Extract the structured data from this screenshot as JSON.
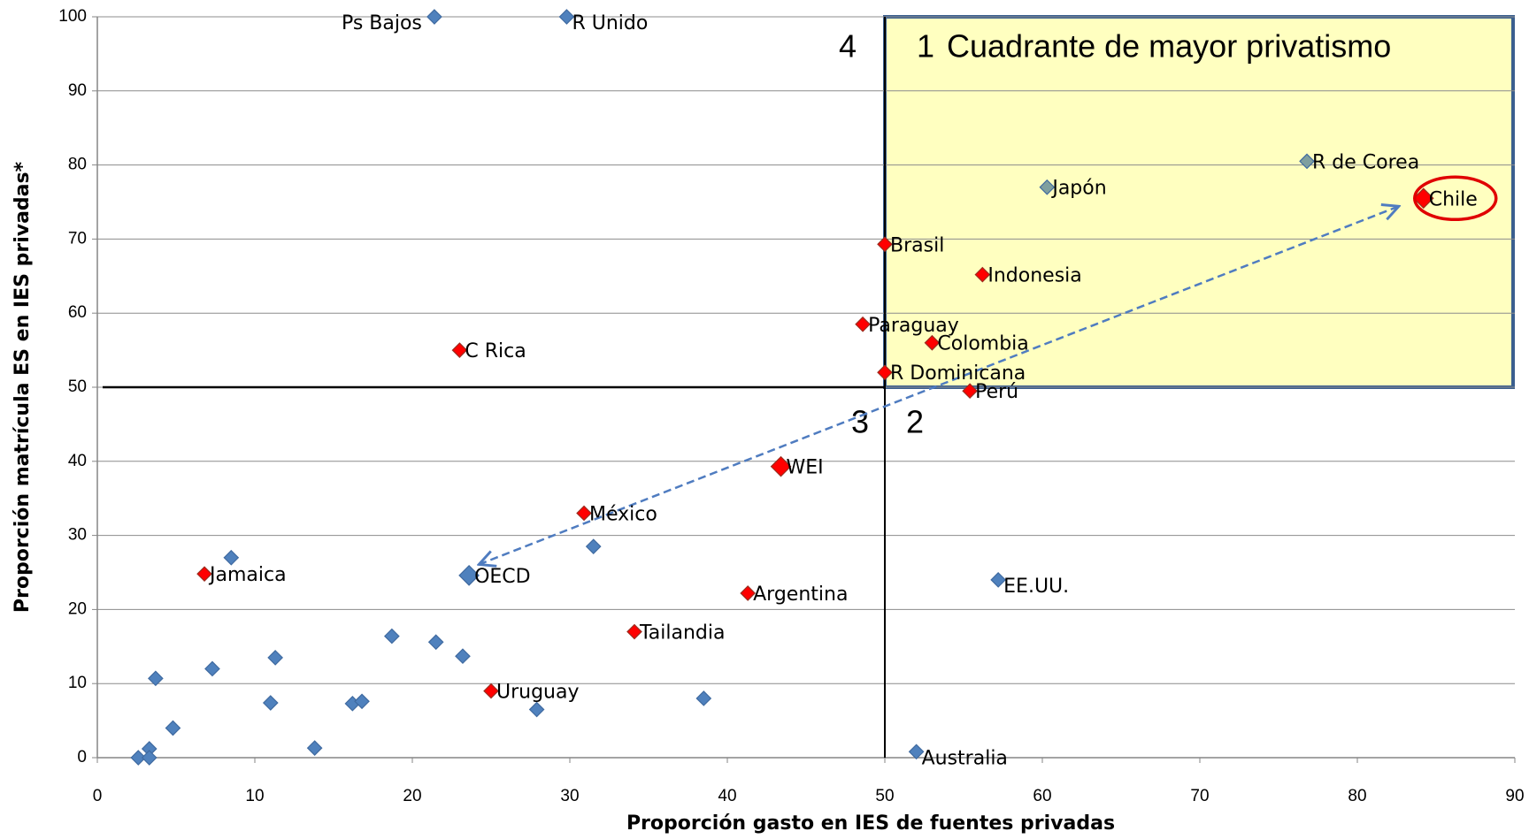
{
  "chart_data": {
    "type": "scatter",
    "xlabel": "Proporción gasto en IES de fuentes privadas",
    "ylabel": "Proporción matrícula ES en IES privadas*",
    "xlim": [
      0,
      90
    ],
    "xticks": [
      0,
      10,
      20,
      30,
      40,
      50,
      60,
      70,
      80,
      90
    ],
    "ylim": [
      0,
      100
    ],
    "yticks": [
      0,
      10,
      20,
      30,
      40,
      50,
      60,
      70,
      80,
      90,
      100
    ],
    "grid": true,
    "quadrant": {
      "x": 50,
      "y": 50,
      "color": "#ffffc0",
      "border": "#3b5f8f",
      "title": "Cuadrante de mayor privatismo",
      "numbers": [
        "1",
        "2",
        "3",
        "4"
      ]
    },
    "series": [
      {
        "color": "#4f81bd",
        "marker_size": 8,
        "labels": [
          "Ps Bajos",
          "R Unido",
          "EE.UU.",
          "Australia",
          null,
          null,
          null,
          null,
          null,
          null,
          null,
          null,
          null,
          null,
          null,
          null,
          null,
          null,
          null,
          null,
          null,
          null
        ],
        "x": [
          21.4,
          29.8,
          57.2,
          52,
          8.5,
          31.5,
          3.7,
          7.3,
          11.3,
          18.7,
          21.5,
          23.2,
          11,
          16.2,
          16.8,
          38.5,
          27.9,
          4.8,
          13.8,
          2.6,
          3.3,
          3.3
        ],
        "y": [
          100,
          100,
          24,
          0.8,
          27,
          28.5,
          10.7,
          12,
          13.5,
          16.4,
          15.6,
          13.7,
          7.4,
          7.3,
          7.6,
          8,
          6.5,
          4,
          1.3,
          0,
          1.2,
          0
        ]
      },
      {
        "color": "#ff0000",
        "marker_size": 8,
        "labels": [
          "C Rica",
          "Brasil",
          "Indonesia",
          "Paraguay",
          "Colombia",
          "R Dominicana",
          "Perú",
          "México",
          "Jamaica",
          "Argentina",
          "Tailandia",
          "Uruguay"
        ],
        "x": [
          23,
          50,
          56.2,
          48.6,
          53,
          50,
          55.4,
          30.9,
          6.8,
          41.3,
          34.1,
          25
        ],
        "y": [
          55,
          69.3,
          65.2,
          58.5,
          56,
          52,
          49.5,
          33,
          24.8,
          22.2,
          17,
          9
        ]
      },
      {
        "color": "#7f9f9f",
        "marker_size": 8,
        "labels": [
          "R de Corea",
          "Japón"
        ],
        "x": [
          76.8,
          60.3
        ],
        "y": [
          80.5,
          77
        ]
      },
      {
        "color": "#ff0000",
        "marker_size": 11,
        "labels": [
          "Chile",
          "WEI"
        ],
        "x": [
          84.2,
          43.4
        ],
        "y": [
          75.5,
          39.3
        ]
      },
      {
        "color": "#4f81bd",
        "marker_size": 11,
        "labels": [
          "OECD"
        ],
        "x": [
          23.6
        ],
        "y": [
          24.6
        ]
      }
    ]
  }
}
